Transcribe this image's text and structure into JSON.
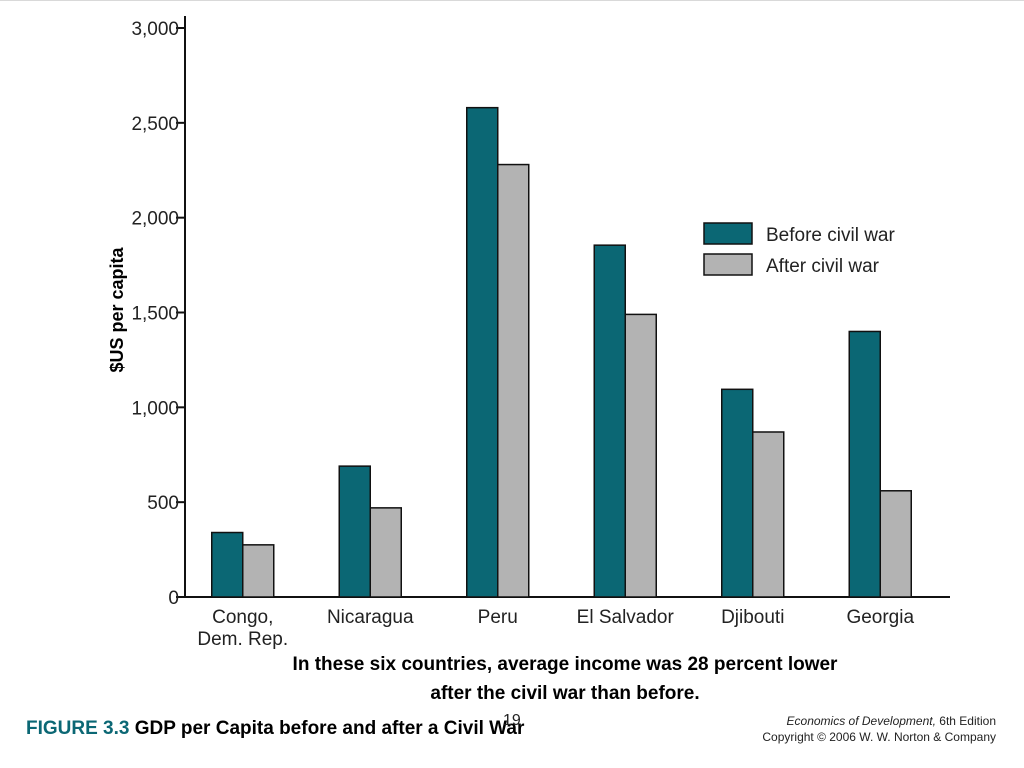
{
  "chart_data": {
    "type": "bar",
    "categories": [
      [
        "Congo,",
        "Dem. Rep."
      ],
      [
        "Nicaragua"
      ],
      [
        "Peru"
      ],
      [
        "El Salvador"
      ],
      [
        "Djibouti"
      ],
      [
        "Georgia"
      ]
    ],
    "series": [
      {
        "name": "Before civil war",
        "color": "#0b6774",
        "values": [
          340,
          690,
          2580,
          1855,
          1095,
          1400
        ]
      },
      {
        "name": "After civil war",
        "color": "#b3b3b3",
        "values": [
          275,
          470,
          2280,
          1490,
          870,
          560
        ]
      }
    ],
    "ylabel": "$US per capita",
    "xlabel": "",
    "ylim": [
      0,
      3000
    ],
    "yticks": [
      0,
      500,
      1000,
      1500,
      2000,
      2500,
      3000
    ],
    "ytick_labels": [
      "0",
      "500",
      "1,000",
      "1,500",
      "2,000",
      "2,500",
      "3,000"
    ],
    "legend_position": "right"
  },
  "caption_lines": [
    "In these six countries, average income was 28 percent lower",
    "after the civil war than before."
  ],
  "figure": {
    "number": "FIGURE 3.3",
    "title": "GDP per Capita before and after a Civil War"
  },
  "slide_number": "19",
  "credit": {
    "book": "Economics of Development,",
    "edition": "6th Edition",
    "copyright": "Copyright © 2006 W. W. Norton & Company"
  }
}
